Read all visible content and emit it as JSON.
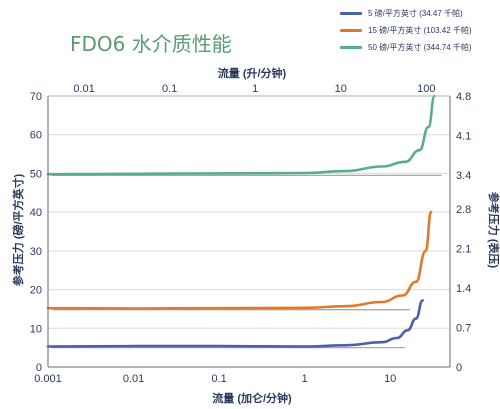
{
  "chart_data": {
    "type": "line",
    "title": "FDO6 水介质性能",
    "x_bottom": {
      "label": "流量 (加仑/分钟)",
      "scale": "log",
      "range": [
        0.001,
        50
      ],
      "ticks": [
        0.001,
        0.01,
        0.1,
        1,
        10
      ],
      "tick_labels": [
        "0.001",
        "0.01",
        "0.1",
        "1",
        "10"
      ]
    },
    "x_top": {
      "label": "流量 (升/分钟)",
      "scale": "log",
      "ticks": [
        0.01,
        0.1,
        1,
        10,
        100
      ],
      "tick_labels": [
        "0.01",
        "0.1",
        "1",
        "10",
        "100"
      ]
    },
    "y_left": {
      "label": "参考压力 (磅/平方英寸)",
      "range": [
        0,
        70
      ],
      "ticks": [
        0,
        10,
        20,
        30,
        40,
        50,
        60,
        70
      ],
      "tick_labels": [
        "0",
        "10",
        "20",
        "30",
        "40",
        "50",
        "60",
        "70"
      ]
    },
    "y_right": {
      "label": "参考压力 (表压)",
      "range": [
        0,
        4.8
      ],
      "ticks": [
        0,
        0.7,
        1.4,
        2.1,
        2.8,
        3.4,
        4.1,
        4.8
      ],
      "tick_labels": [
        "0",
        "0.7",
        "1.4",
        "2.1",
        "2.8",
        "3.4",
        "4.1",
        "4.8"
      ]
    },
    "grid": "horizontal",
    "legend_position": "top-right",
    "series": [
      {
        "name": "5 磅/平方英寸 (34.47 千帕)",
        "color": "#4a5fb0",
        "reference": {
          "y": 5,
          "x_end": 15
        },
        "points": [
          [
            0.001,
            5.3
          ],
          [
            0.01,
            5.4
          ],
          [
            0.1,
            5.4
          ],
          [
            1,
            5.3
          ],
          [
            3,
            5.6
          ],
          [
            8,
            6.4
          ],
          [
            12,
            7.5
          ],
          [
            16,
            9.5
          ],
          [
            20,
            12.5
          ],
          [
            24,
            17.2
          ]
        ]
      },
      {
        "name": "15 磅/平方英寸 (103.42 千帕)",
        "color": "#e07a2a",
        "reference": {
          "y": 14.8,
          "x_end": 17
        },
        "points": [
          [
            0.001,
            15.2
          ],
          [
            0.01,
            15.1
          ],
          [
            0.1,
            15.2
          ],
          [
            1,
            15.3
          ],
          [
            3,
            15.7
          ],
          [
            8,
            16.8
          ],
          [
            14,
            18.5
          ],
          [
            20,
            22
          ],
          [
            26,
            30
          ],
          [
            30,
            40
          ]
        ]
      },
      {
        "name": "50 磅/平方英寸 (344.74 千帕)",
        "color": "#5aad8c",
        "reference": {
          "y": 49.5,
          "x_end": 40
        },
        "points": [
          [
            0.001,
            49.8
          ],
          [
            0.01,
            49.9
          ],
          [
            0.1,
            50.0
          ],
          [
            1,
            50.1
          ],
          [
            3,
            50.6
          ],
          [
            8,
            51.8
          ],
          [
            15,
            53.0
          ],
          [
            22,
            56
          ],
          [
            28,
            62
          ],
          [
            33,
            70
          ]
        ]
      }
    ]
  }
}
